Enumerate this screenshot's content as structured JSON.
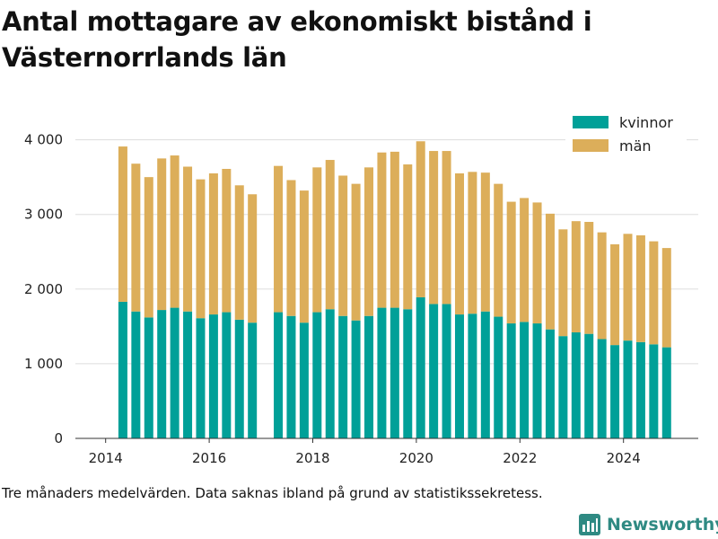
{
  "title": "Antal mottagare av ekonomiskt bistånd i Västernorrlands län",
  "caption": "Tre månaders medelvärden. Data saknas ibland på grund av statistikssekretess.",
  "brand": {
    "name": "Newsworthy",
    "color": "#2f8a83"
  },
  "colors": {
    "kvinnor": "#00a098",
    "man": "#dcae5a",
    "grid": "#dddddd",
    "axis": "#333333"
  },
  "chart_data": {
    "type": "bar",
    "stacked": true,
    "x_ticks": [
      "2014",
      "2016",
      "2018",
      "2020",
      "2022",
      "2024"
    ],
    "y_ticks": [
      "0",
      "1 000",
      "2 000",
      "3 000",
      "4 000"
    ],
    "ylim": [
      0,
      4200
    ],
    "legend_position": "top-right",
    "grid": true,
    "x": [
      "2014-05",
      "2014-08",
      "2014-11",
      "2015-02",
      "2015-05",
      "2015-08",
      "2015-11",
      "2016-02",
      "2016-05",
      "2016-08",
      "2016-11",
      "2017-05",
      "2017-08",
      "2017-11",
      "2018-02",
      "2018-05",
      "2018-08",
      "2018-11",
      "2019-02",
      "2019-05",
      "2019-08",
      "2019-11",
      "2020-02",
      "2020-05",
      "2020-08",
      "2020-11",
      "2021-02",
      "2021-05",
      "2021-08",
      "2021-11",
      "2022-02",
      "2022-05",
      "2022-08",
      "2022-11",
      "2023-02",
      "2023-05",
      "2023-08",
      "2023-11",
      "2024-02",
      "2024-05",
      "2024-08",
      "2024-11"
    ],
    "series": [
      {
        "name": "kvinnor",
        "values": [
          1830,
          1700,
          1620,
          1720,
          1750,
          1700,
          1610,
          1660,
          1690,
          1590,
          1550,
          1690,
          1640,
          1550,
          1690,
          1730,
          1640,
          1580,
          1640,
          1750,
          1750,
          1730,
          1890,
          1800,
          1800,
          1660,
          1670,
          1700,
          1630,
          1540,
          1560,
          1540,
          1460,
          1370,
          1420,
          1400,
          1330,
          1250,
          1310,
          1290,
          1260,
          1220
        ]
      },
      {
        "name": "män",
        "values": [
          2080,
          1980,
          1880,
          2030,
          2040,
          1940,
          1860,
          1890,
          1920,
          1800,
          1720,
          1960,
          1820,
          1770,
          1940,
          2000,
          1880,
          1830,
          1990,
          2080,
          2090,
          1940,
          2090,
          2050,
          2050,
          1890,
          1900,
          1860,
          1780,
          1630,
          1660,
          1620,
          1550,
          1430,
          1490,
          1500,
          1430,
          1350,
          1430,
          1430,
          1380,
          1330
        ]
      }
    ]
  }
}
